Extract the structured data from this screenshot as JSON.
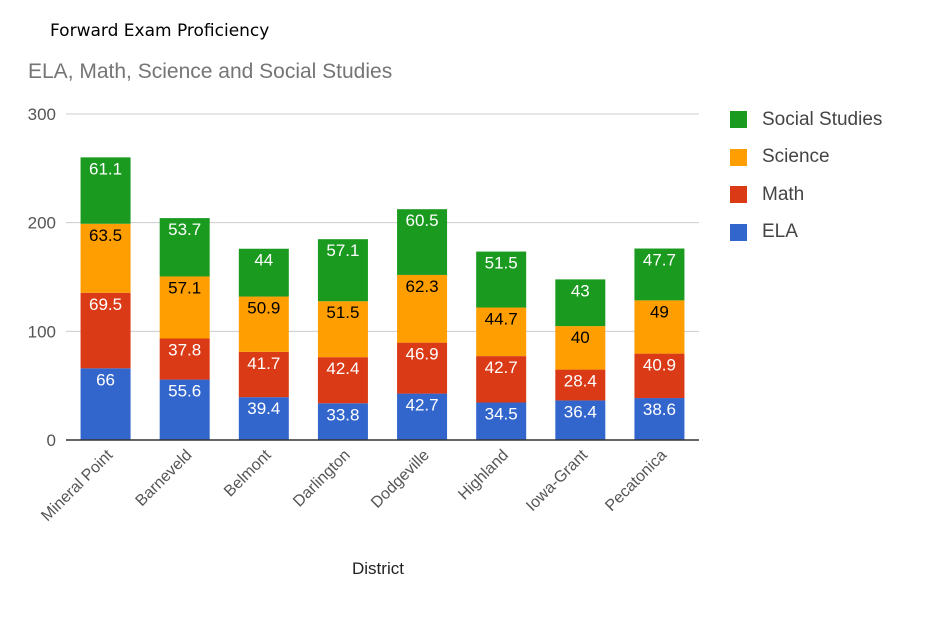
{
  "page_heading": "Forward Exam Proficiency",
  "colors": {
    "Social Studies": "#1a9a1f",
    "Science": "#ff9e00",
    "Math": "#db3a16",
    "ELA": "#3366cc"
  },
  "chart_data": {
    "type": "bar",
    "stacked": true,
    "title": "ELA, Math, Science and Social Studies",
    "xlabel": "District",
    "ylabel": "",
    "ylim": [
      0,
      300
    ],
    "yticks": [
      0,
      100,
      200,
      300
    ],
    "grid": true,
    "legend_position": "right",
    "categories": [
      "Mineral Point",
      "Barneveld",
      "Belmont",
      "Darlington",
      "Dodgeville",
      "Highland",
      "Iowa-Grant",
      "Pecatonica"
    ],
    "series": [
      {
        "name": "ELA",
        "values": [
          66,
          55.6,
          39.4,
          33.8,
          42.7,
          34.5,
          36.4,
          38.6
        ]
      },
      {
        "name": "Math",
        "values": [
          69.5,
          37.8,
          41.7,
          42.4,
          46.9,
          42.7,
          28.4,
          40.9
        ]
      },
      {
        "name": "Science",
        "values": [
          63.5,
          57.1,
          50.9,
          51.5,
          62.3,
          44.7,
          40,
          49
        ]
      },
      {
        "name": "Social Studies",
        "values": [
          61.1,
          53.7,
          44,
          57.1,
          60.5,
          51.5,
          43,
          47.7
        ]
      }
    ],
    "legend_order": [
      "Social Studies",
      "Science",
      "Math",
      "ELA"
    ]
  }
}
